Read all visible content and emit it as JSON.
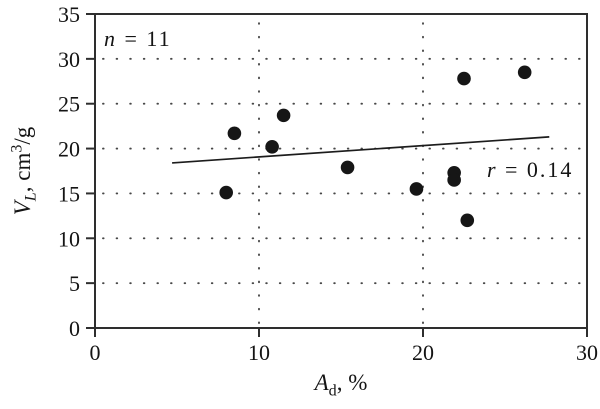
{
  "chart_data": {
    "type": "scatter",
    "title": "",
    "xlabel_text": "Ad, %",
    "ylabel_text": "VL, cm3/g",
    "xlabel_parts": {
      "variable": "A",
      "subscript": "d",
      "suffix": ", %"
    },
    "ylabel_parts": {
      "variable": "V",
      "subscript": "L",
      "mid": ", cm",
      "superscript": "3",
      "suffix": "/g"
    },
    "xlim": [
      0,
      30
    ],
    "ylim": [
      0,
      35
    ],
    "x_ticks": [
      0,
      10,
      20,
      30
    ],
    "y_ticks": [
      0,
      5,
      10,
      15,
      20,
      25,
      30,
      35
    ],
    "grid": {
      "style": "dotted",
      "x": [
        10,
        20
      ],
      "y": [
        5,
        10,
        15,
        20,
        25,
        30
      ]
    },
    "sample_size": 11,
    "correlation_r": 0.14,
    "points": [
      {
        "x": 8.0,
        "y": 15.1
      },
      {
        "x": 8.5,
        "y": 21.7
      },
      {
        "x": 10.8,
        "y": 20.2
      },
      {
        "x": 11.5,
        "y": 23.7
      },
      {
        "x": 15.4,
        "y": 17.9
      },
      {
        "x": 19.6,
        "y": 15.5
      },
      {
        "x": 21.9,
        "y": 17.3
      },
      {
        "x": 21.9,
        "y": 16.5
      },
      {
        "x": 22.5,
        "y": 27.8
      },
      {
        "x": 22.7,
        "y": 12.0
      },
      {
        "x": 26.2,
        "y": 28.5
      }
    ],
    "trend_line": {
      "x1": 4.7,
      "y1": 18.4,
      "x2": 27.7,
      "y2": 21.3
    },
    "annotations": {
      "n": {
        "variable": "n",
        "rest": " = 11",
        "x": 0.55,
        "y": 31.55
      },
      "r": {
        "variable": "r",
        "rest": " = 0.14",
        "x": 23.9,
        "y": 16.9
      }
    },
    "legend": "none",
    "colors": {
      "background": "#ffffff",
      "axis": "#2e2e2e",
      "grid": "#474747",
      "points": "#161616",
      "trend": "#1c1c1c",
      "text": "#141414"
    }
  }
}
